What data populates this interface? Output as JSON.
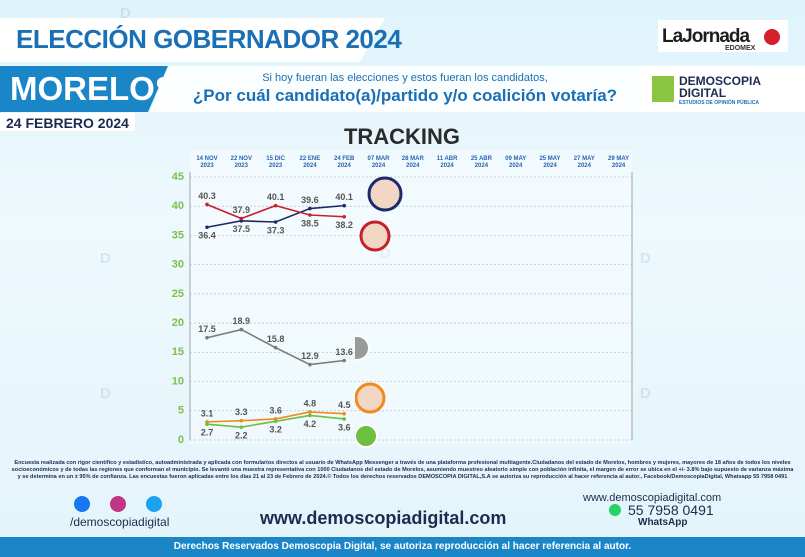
{
  "header": {
    "title": "ELECCIÓN GOBERNADOR 2024",
    "state": "MORELOS",
    "date": "24 FEBRERO 2024",
    "question_intro": "Si hoy fueran las elecciones y estos fueran los candidatos,",
    "question": "¿Por cuál candidato(a)/partido y/o coalición votaría?",
    "partner_logo": "LaJornada",
    "partner_sub": "EDOMEX",
    "brand_line1": "DEMOSCOPIA",
    "brand_line2": "DIGITAL",
    "brand_sub": "ESTUDIOS DE OPINIÓN PÚBLICA"
  },
  "chart_data": {
    "type": "line",
    "title": "TRACKING",
    "categories": [
      "14 NOV 2023",
      "22 NOV 2023",
      "15 DIC 2023",
      "22 ENE 2024",
      "24 FEB 2024",
      "07 MAR 2024",
      "28 MAR 2024",
      "11 ABR 2024",
      "25 ABR 2024",
      "09 MAY 2024",
      "25 MAY 2024",
      "27 MAY 2024",
      "29 MAY 2024"
    ],
    "series": [
      {
        "color": "#1b2a6b",
        "values": [
          36.4,
          37.5,
          37.3,
          39.6,
          40.1,
          null,
          null,
          null,
          null,
          null,
          null,
          null,
          null
        ]
      },
      {
        "color": "#c8202a",
        "values": [
          40.3,
          37.9,
          40.1,
          38.5,
          38.2,
          null,
          null,
          null,
          null,
          null,
          null,
          null,
          null
        ]
      },
      {
        "color": "#7a7a7a",
        "values": [
          17.5,
          18.9,
          15.8,
          12.9,
          13.6,
          null,
          null,
          null,
          null,
          null,
          null,
          null,
          null
        ]
      },
      {
        "color": "#f08a1c",
        "values": [
          3.1,
          3.3,
          3.6,
          4.8,
          4.5,
          null,
          null,
          null,
          null,
          null,
          null,
          null,
          null
        ]
      },
      {
        "color": "#6cbf3f",
        "values": [
          2.7,
          2.2,
          3.2,
          4.2,
          3.6,
          null,
          null,
          null,
          null,
          null,
          null,
          null,
          null
        ]
      }
    ],
    "ylim": [
      0,
      45
    ],
    "yticks": [
      0,
      5,
      10,
      15,
      20,
      25,
      30,
      35,
      40,
      45
    ],
    "grid": true
  },
  "footer": {
    "methodology": "Encuesta realizada con rigor científico y estadístico, autoadministrada y aplicada con formularios directos al usuario de WhatsApp Messenger a través de una plataforma profesional multiagente.Ciudadanos del estado de Morelos, hombres y mujeres, mayores de 18 años de todos los niveles socioeconómicos y de todas las regiones que conforman el municipio. Se levantó una muestra representativa con 1000 Ciudadanos del estado de Morelos, asumiendo muestreo aleatorio simple con población infinita, el margen de error se ubica en el +/- 3.8% bajo supuesto de varianza máxima y se determina en un ± 95% de confianza. Las encuestas fueron aplicadas entre los días 21 al 23 de Febrero de 2024.© Todos los derechos reservados DEMOSCOPIA DIGITAL,S.A se autoriza su reproducción al hacer referencia al autor., Facebook/DemoscopiaDigital, Whatsapp 55 7958 0491",
    "social_handle": "/demoscopiadigital",
    "website": "www.demoscopiadigital.com",
    "website_small": "www.demoscopiadigital.com",
    "phone": "55 7958 0491",
    "phone_label": "WhatsApp",
    "rights": "Derechos Reservados Demoscopia Digital, se autoriza reproducción al hacer referencia al autor."
  }
}
